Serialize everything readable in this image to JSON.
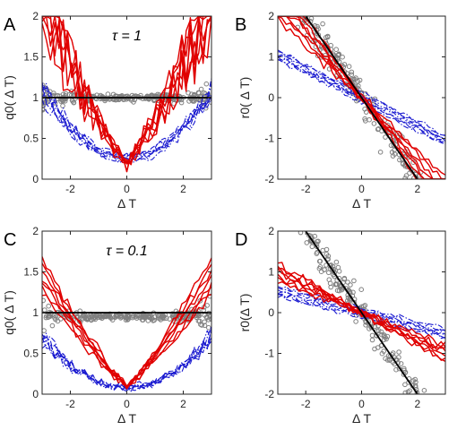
{
  "colors": {
    "red": "#e00000",
    "blue": "#1a1ad0",
    "gray": "#808080",
    "black": "#000000",
    "axis": "#262626"
  },
  "chart_data": [
    {
      "panel": "A",
      "type": "line",
      "annotation": "τ = 1",
      "xlabel": "Δ T",
      "ylabel": "q0( Δ T)",
      "xlim": [
        -3,
        3
      ],
      "ylim": [
        0,
        2
      ],
      "xticks": [
        "-2",
        "0",
        "2"
      ],
      "yticks": [
        "0",
        "0.5",
        "1",
        "1.5",
        "2"
      ],
      "reference_line": {
        "x": [
          -3,
          3
        ],
        "y": [
          1,
          1
        ]
      },
      "red_series_min": 0.18,
      "blue_series_min": 0.22,
      "red_edge_max": 2.0,
      "gray_points_level": 1.0
    },
    {
      "panel": "B",
      "type": "line",
      "xlabel": "Δ T",
      "ylabel": "r0( Δ T)",
      "xlim": [
        -3,
        3
      ],
      "ylim": [
        -2,
        2
      ],
      "xticks": [
        "-2",
        "0",
        "2"
      ],
      "yticks": [
        "-2",
        "-1",
        "0",
        "1",
        "2"
      ],
      "reference_line": {
        "x": [
          -2,
          2
        ],
        "y": [
          2,
          -2
        ]
      },
      "red_slope": -0.75,
      "blue_slope": -0.35
    },
    {
      "panel": "C",
      "type": "line",
      "annotation": "τ = 0.1",
      "xlabel": "Δ T",
      "ylabel": "q0( Δ T)",
      "xlim": [
        -3,
        3
      ],
      "ylim": [
        0,
        2
      ],
      "xticks": [
        "-2",
        "0",
        "2"
      ],
      "yticks": [
        "0",
        "0.5",
        "1",
        "1.5",
        "2"
      ],
      "reference_line": {
        "x": [
          -3,
          3
        ],
        "y": [
          1,
          1
        ]
      },
      "red_series_min": 0.1,
      "blue_series_min": 0.08,
      "gray_points_level": 0.95
    },
    {
      "panel": "D",
      "type": "line",
      "xlabel": "Δ T",
      "ylabel": "r0(Δ T)",
      "xlim": [
        -3,
        3
      ],
      "ylim": [
        -2,
        2
      ],
      "xticks": [
        "-2",
        "0",
        "2"
      ],
      "yticks": [
        "-2",
        "-1",
        "0",
        "1",
        "2"
      ],
      "reference_line": {
        "x": [
          -2,
          2
        ],
        "y": [
          2,
          -2
        ]
      },
      "red_slope": -0.3,
      "blue_slope": -0.17
    }
  ]
}
